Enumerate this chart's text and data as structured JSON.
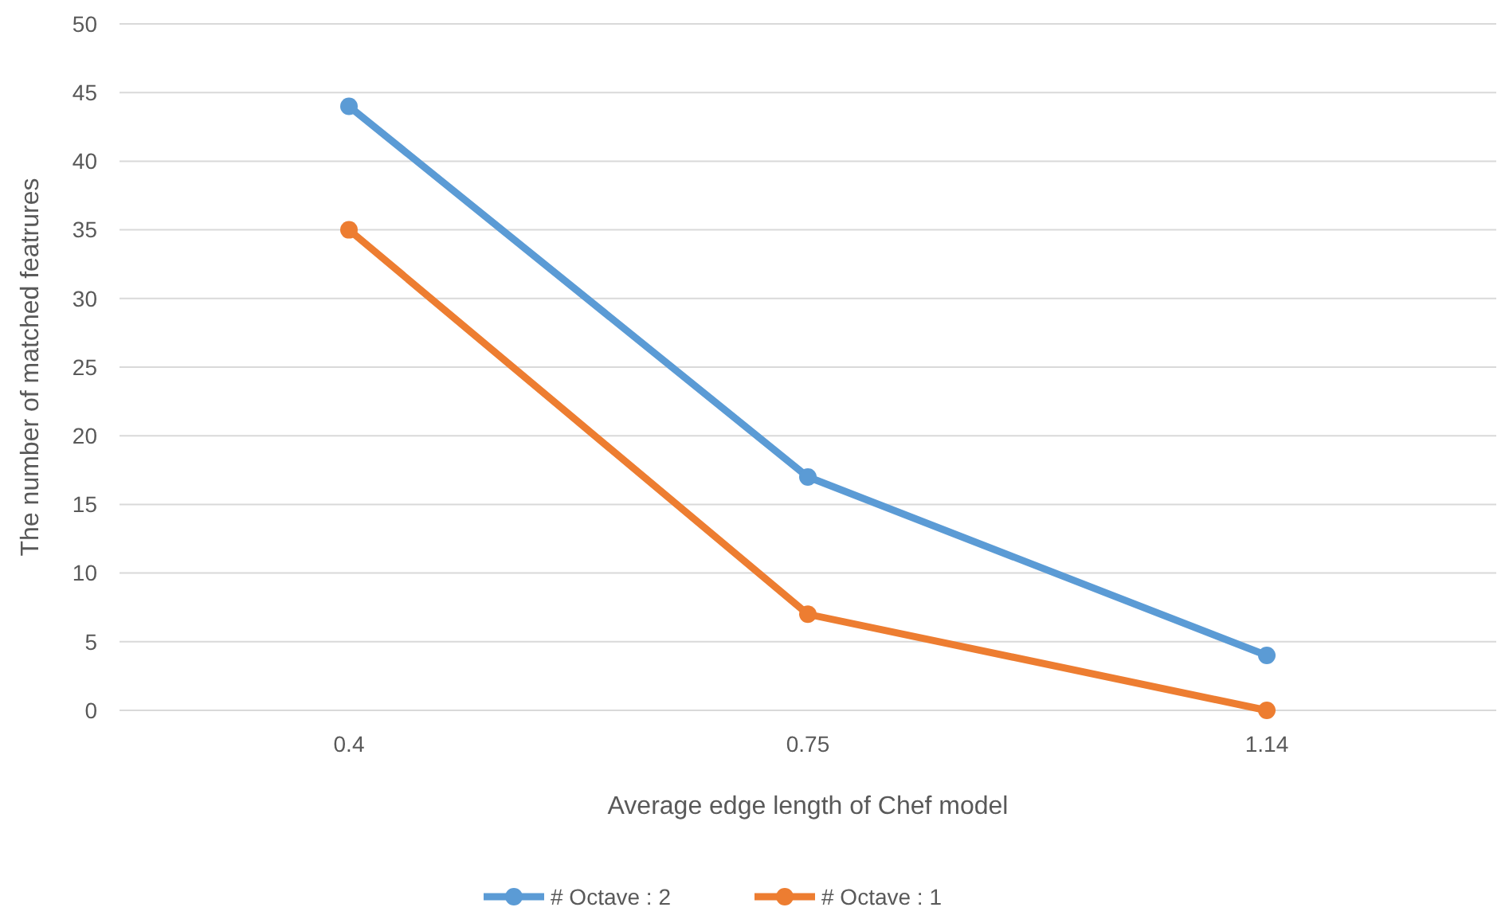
{
  "chart_data": {
    "type": "line",
    "xlabel": "Average edge length of Chef model",
    "ylabel": "The number of matched featrures",
    "categories": [
      "0.4",
      "0.75",
      "1.14"
    ],
    "series": [
      {
        "name": "# Octave : 2",
        "color": "#5b9bd5",
        "values": [
          44,
          17,
          4
        ]
      },
      {
        "name": "# Octave : 1",
        "color": "#ed7d31",
        "values": [
          35,
          7,
          0
        ]
      }
    ],
    "ylim": [
      0,
      50
    ],
    "yticks": [
      0,
      5,
      10,
      15,
      20,
      25,
      30,
      35,
      40,
      45,
      50
    ],
    "grid": "y",
    "legend": "bottom",
    "marker": "circle",
    "line_style": "solid"
  }
}
